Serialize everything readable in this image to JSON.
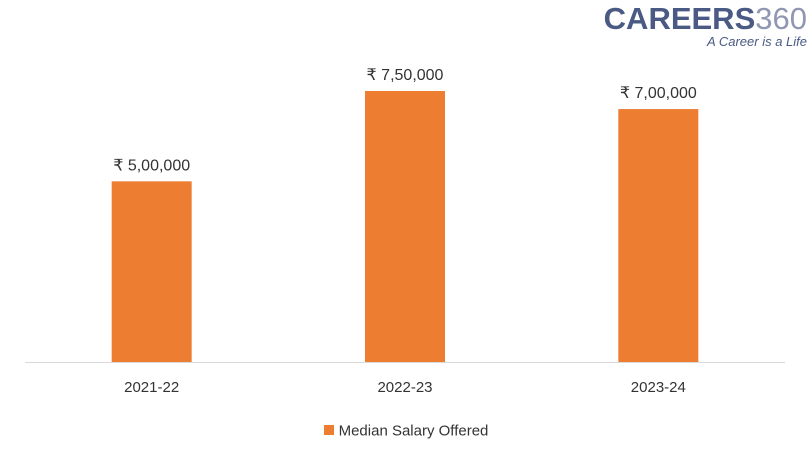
{
  "brand": {
    "name_main": "CAREERS",
    "name_num": "360",
    "tagline": "A Career is a Life"
  },
  "colors": {
    "bar": "#ED7D31",
    "axis": "#d9d9d9",
    "text": "#333333"
  },
  "chart_data": {
    "type": "bar",
    "categories": [
      "2021-22",
      "2022-23",
      "2023-24"
    ],
    "series": [
      {
        "name": "Median Salary Offered",
        "values": [
          500000,
          750000,
          700000
        ],
        "labels": [
          "₹ 5,00,000",
          "₹ 7,50,000",
          "₹ 7,00,000"
        ]
      }
    ],
    "title": "",
    "xlabel": "",
    "ylabel": "",
    "ylim": [
      0,
      750000
    ],
    "grid": false,
    "legend": "bottom"
  }
}
